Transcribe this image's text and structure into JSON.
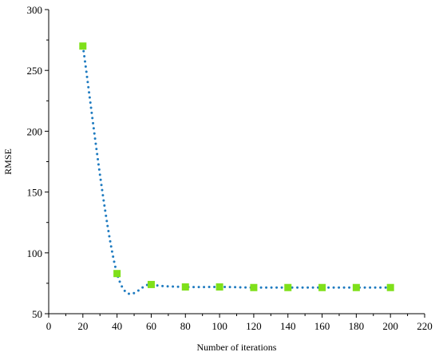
{
  "chart_data": {
    "type": "scatter",
    "title": "",
    "xlabel": "Number of iterations",
    "ylabel": "RMSE",
    "xlim": [
      0,
      220
    ],
    "ylim": [
      50,
      300
    ],
    "x_ticks": [
      0,
      20,
      40,
      60,
      80,
      100,
      120,
      140,
      160,
      180,
      200,
      220
    ],
    "y_ticks": [
      50,
      100,
      150,
      200,
      250,
      300
    ],
    "grid": false,
    "legend": "none",
    "series": [
      {
        "x": [
          20,
          40,
          60,
          80,
          100,
          120,
          140,
          160,
          180,
          200
        ],
        "y": [
          270,
          83,
          74,
          72,
          72,
          71.5,
          71.5,
          71.5,
          71.5,
          71.5
        ],
        "marker": "square",
        "marker_color": "#7FE01A",
        "trend_line": "dotted",
        "trend_color": "#1F7BC0"
      }
    ]
  }
}
